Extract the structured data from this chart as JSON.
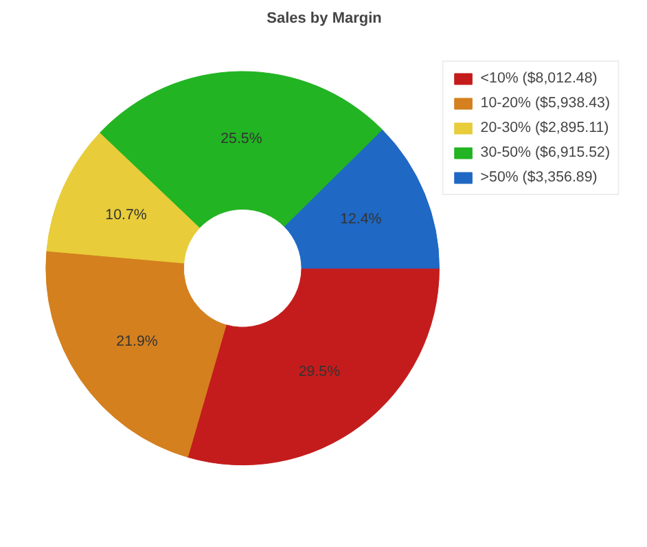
{
  "chart_data": {
    "type": "donut",
    "title": "Sales by Margin",
    "categories": [
      "<10% ($8,012.48)",
      "10-20% ($5,938.43)",
      "20-30% ($2,895.11)",
      "30-50% ($6,915.52)",
      ">50% ($3,356.89)"
    ],
    "values": [
      29.5,
      21.9,
      10.7,
      25.5,
      12.4
    ],
    "value_labels": [
      "29.5%",
      "21.9%",
      "10.7%",
      "25.5%",
      "12.4%"
    ],
    "colors": [
      "#c41c1c",
      "#d4801e",
      "#e8cc3a",
      "#22b422",
      "#1f68c4"
    ],
    "legend": "top right"
  }
}
